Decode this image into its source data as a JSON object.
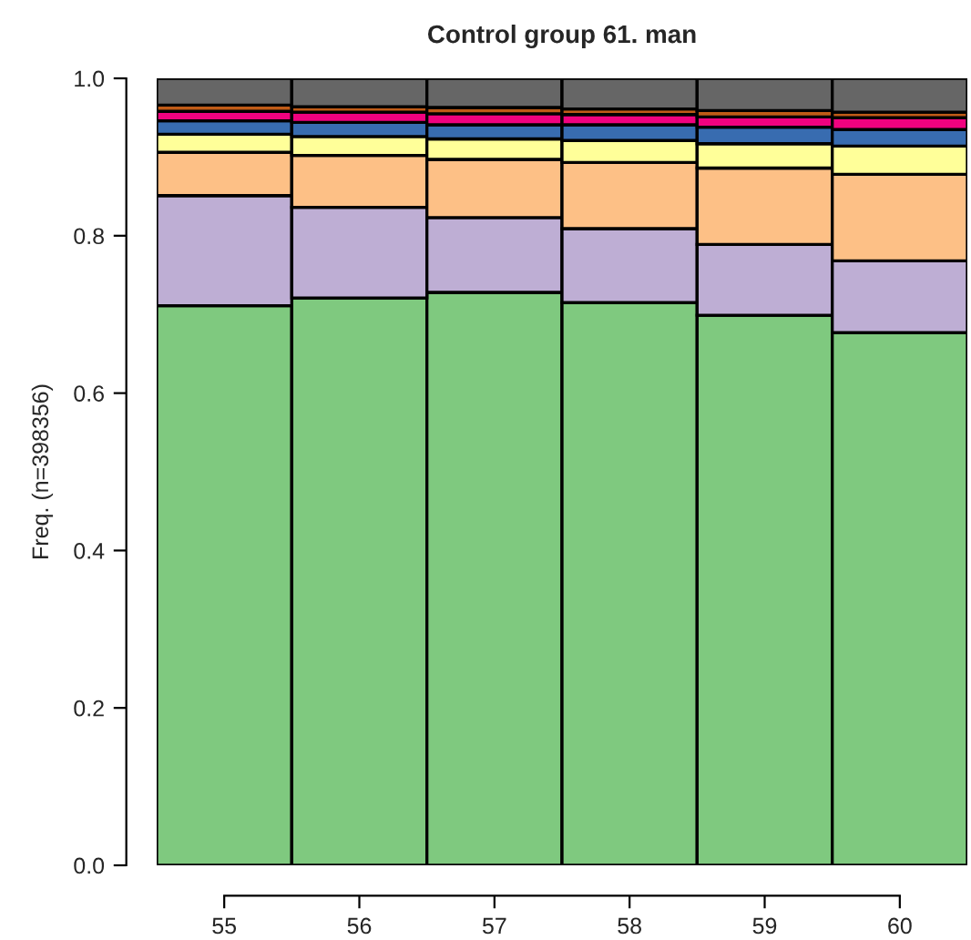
{
  "chart_data": {
    "type": "bar",
    "stacked": true,
    "title": "Control group 61. man",
    "ylabel": "Freq. (n=398356)",
    "categories": [
      "55",
      "56",
      "57",
      "58",
      "59",
      "60"
    ],
    "series": [
      {
        "color": "#7fc97f",
        "values": [
          0.711,
          0.721,
          0.728,
          0.715,
          0.699,
          0.677
        ]
      },
      {
        "color": "#beaed4",
        "values": [
          0.14,
          0.115,
          0.095,
          0.094,
          0.09,
          0.091
        ]
      },
      {
        "color": "#fdc086",
        "values": [
          0.055,
          0.066,
          0.074,
          0.084,
          0.097,
          0.11
        ]
      },
      {
        "color": "#ffff99",
        "values": [
          0.023,
          0.024,
          0.026,
          0.028,
          0.031,
          0.036
        ]
      },
      {
        "color": "#386cb0",
        "values": [
          0.017,
          0.018,
          0.018,
          0.02,
          0.021,
          0.021
        ]
      },
      {
        "color": "#f0027f",
        "values": [
          0.012,
          0.013,
          0.014,
          0.013,
          0.013,
          0.015
        ]
      },
      {
        "color": "#bf5b17",
        "values": [
          0.008,
          0.007,
          0.008,
          0.007,
          0.008,
          0.007
        ]
      },
      {
        "color": "#666666",
        "values": [
          0.034,
          0.036,
          0.037,
          0.039,
          0.041,
          0.043
        ]
      }
    ],
    "ylim": [
      0,
      1
    ],
    "yticks": [
      {
        "value": 0,
        "label": "0.0"
      },
      {
        "value": 0.2,
        "label": "0.2"
      },
      {
        "value": 0.4,
        "label": "0.4"
      },
      {
        "value": 0.6,
        "label": "0.6"
      },
      {
        "value": 0.8,
        "label": "0.8"
      },
      {
        "value": 1,
        "label": "1.0"
      }
    ],
    "legend": false
  }
}
